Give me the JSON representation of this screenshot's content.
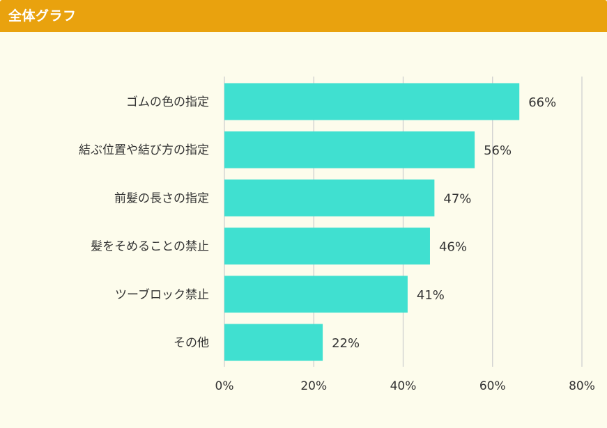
{
  "header": {
    "title": "全体グラフ"
  },
  "colors": {
    "header_bg": "#e9a20e",
    "page_bg": "#fdfcec",
    "bar": "#40e0d0",
    "grid": "#cfcfcf",
    "text": "#333333"
  },
  "chart_data": {
    "type": "bar",
    "orientation": "horizontal",
    "title": "全体グラフ",
    "categories": [
      "ゴムの色の指定",
      "結ぶ位置や結び方の指定",
      "前髪の長さの指定",
      "髪をそめることの禁止",
      "ツーブロック禁止",
      "その他"
    ],
    "values": [
      66,
      56,
      47,
      46,
      41,
      22
    ],
    "value_labels": [
      "66%",
      "56%",
      "47%",
      "46%",
      "41%",
      "22%"
    ],
    "xlim": [
      0,
      80
    ],
    "x_ticks": [
      0,
      20,
      40,
      60,
      80
    ],
    "x_tick_labels": [
      "0%",
      "20%",
      "40%",
      "60%",
      "80%"
    ],
    "xlabel": "",
    "ylabel": "",
    "grid": true,
    "legend": "none"
  }
}
